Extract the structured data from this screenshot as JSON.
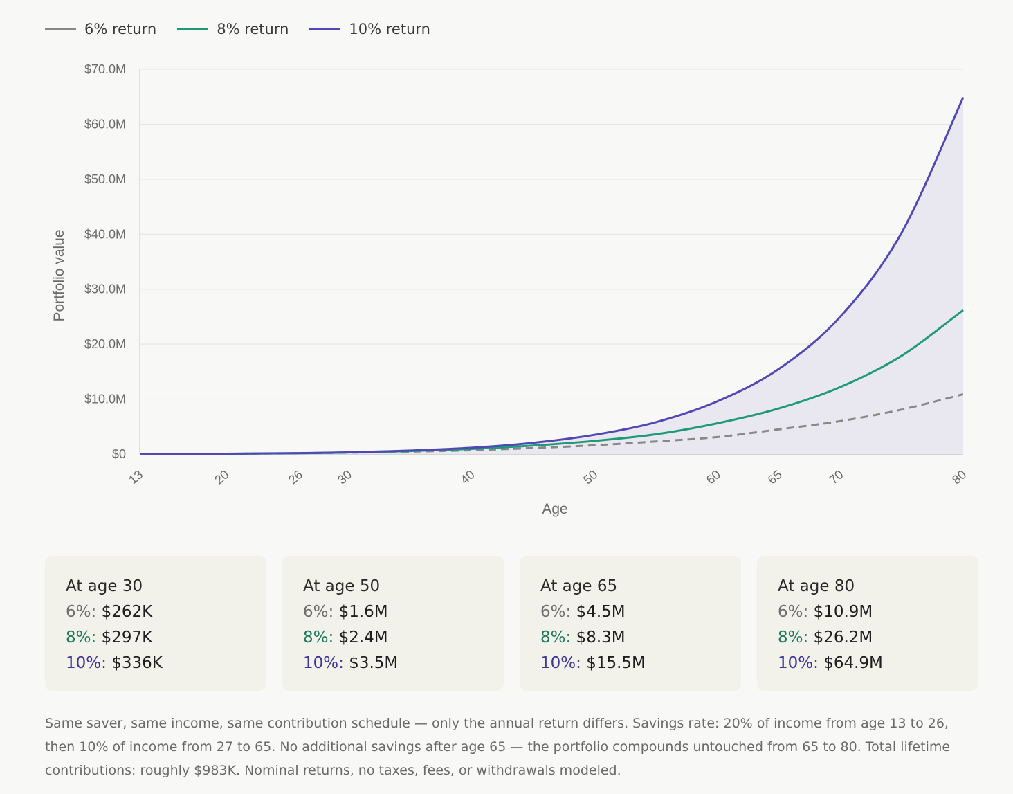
{
  "colors": {
    "r6": "#8a8885",
    "r8": "#1f9a78",
    "r10": "#5148b5",
    "label6": "#6e6e6e",
    "label8": "#1d7a5c",
    "label10": "#3e359a",
    "fill": "#e9e8f1",
    "grid": "#e4e4e4",
    "axis": "#c8c8c8"
  },
  "legend": [
    {
      "label": "6% return",
      "color": "#8a8885"
    },
    {
      "label": "8% return",
      "color": "#1f9a78"
    },
    {
      "label": "10% return",
      "color": "#5148b5"
    }
  ],
  "chart_data": {
    "type": "line",
    "xlabel": "Age",
    "ylabel": "Portfolio value",
    "xlim": [
      13,
      80
    ],
    "ylim": [
      0,
      70
    ],
    "y_unit": "$M",
    "x_ticks": [
      13,
      20,
      26,
      30,
      40,
      50,
      60,
      65,
      70,
      80
    ],
    "y_ticks": [
      0,
      10,
      20,
      30,
      40,
      50,
      60,
      70
    ],
    "y_tick_labels": [
      "$0",
      "$10.0M",
      "$20.0M",
      "$30.0M",
      "$40.0M",
      "$50.0M",
      "$60.0M",
      "$70.0M"
    ],
    "grid": true,
    "x": [
      13,
      20,
      26,
      30,
      35,
      40,
      45,
      50,
      55,
      60,
      65,
      70,
      75,
      80
    ],
    "series": [
      {
        "name": "6% return",
        "key": "r6",
        "style": "dashed",
        "values": [
          0,
          0.05,
          0.15,
          0.262,
          0.45,
          0.7,
          1.1,
          1.6,
          2.3,
          3.1,
          4.5,
          6.0,
          8.1,
          10.9
        ]
      },
      {
        "name": "8% return",
        "key": "r8",
        "style": "solid",
        "values": [
          0,
          0.05,
          0.16,
          0.297,
          0.55,
          0.95,
          1.55,
          2.4,
          3.6,
          5.6,
          8.3,
          12.2,
          17.9,
          26.2
        ]
      },
      {
        "name": "10% return",
        "key": "r10",
        "style": "solid",
        "values": [
          0,
          0.06,
          0.18,
          0.336,
          0.65,
          1.15,
          2.05,
          3.5,
          5.8,
          9.6,
          15.5,
          25.0,
          40.3,
          64.9
        ]
      }
    ]
  },
  "cards": [
    {
      "title": "At age 30",
      "rows": [
        {
          "pct": "6%:",
          "val": "$262K"
        },
        {
          "pct": "8%:",
          "val": "$297K"
        },
        {
          "pct": "10%:",
          "val": "$336K"
        }
      ]
    },
    {
      "title": "At age 50",
      "rows": [
        {
          "pct": "6%:",
          "val": "$1.6M"
        },
        {
          "pct": "8%:",
          "val": "$2.4M"
        },
        {
          "pct": "10%:",
          "val": "$3.5M"
        }
      ]
    },
    {
      "title": "At age 65",
      "rows": [
        {
          "pct": "6%:",
          "val": "$4.5M"
        },
        {
          "pct": "8%:",
          "val": "$8.3M"
        },
        {
          "pct": "10%:",
          "val": "$15.5M"
        }
      ]
    },
    {
      "title": "At age 80",
      "rows": [
        {
          "pct": "6%:",
          "val": "$10.9M"
        },
        {
          "pct": "8%:",
          "val": "$26.2M"
        },
        {
          "pct": "10%:",
          "val": "$64.9M"
        }
      ]
    }
  ],
  "note": "Same saver, same income, same contribution schedule — only the annual return differs. Savings rate: 20% of income from age 13 to 26, then 10% of income from 27 to 65. No additional savings after age 65 — the portfolio compounds untouched from 65 to 80. Total lifetime contributions: roughly $983K. Nominal returns, no taxes, fees, or withdrawals modeled."
}
